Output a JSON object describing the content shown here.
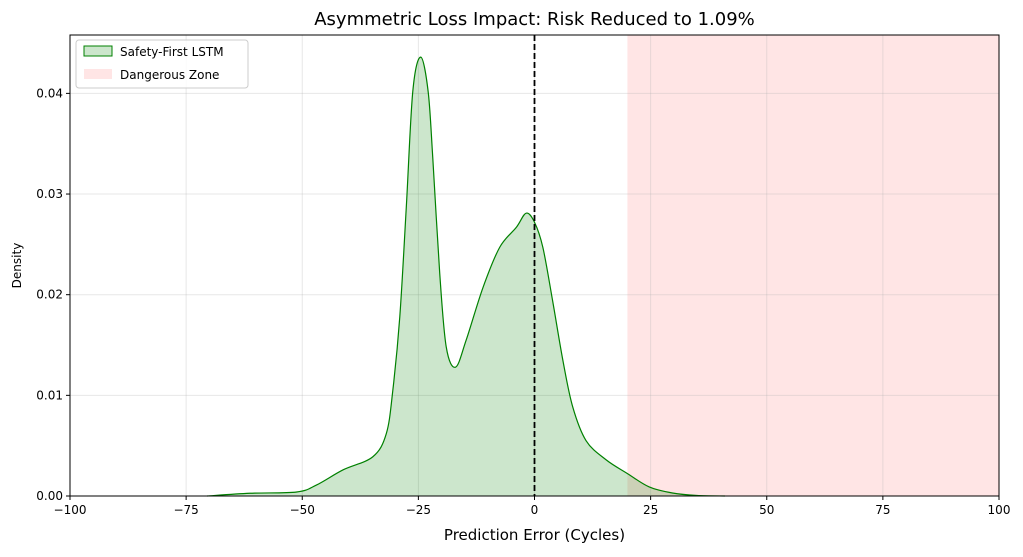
{
  "chart_data": {
    "type": "area",
    "title": "Asymmetric Loss Impact: Risk Reduced to 1.09%",
    "xlabel": "Prediction Error (Cycles)",
    "ylabel": "Density",
    "xlim": [
      -100,
      100
    ],
    "ylim": [
      0,
      0.0458
    ],
    "xticks": [
      -100,
      -75,
      -50,
      -25,
      0,
      25,
      50,
      75,
      100
    ],
    "xtick_labels": [
      "−100",
      "−75",
      "−50",
      "−25",
      "0",
      "25",
      "50",
      "75",
      "100"
    ],
    "yticks": [
      0,
      0.01,
      0.02,
      0.03,
      0.04
    ],
    "ytick_labels": [
      "0.00",
      "0.01",
      "0.02",
      "0.03",
      "0.04"
    ],
    "grid": true,
    "legend_position": "top-left",
    "series": [
      {
        "name": "Safety-First LSTM",
        "color": "#008000",
        "fill_color": "#008000",
        "fill_alpha": 0.2,
        "x": [
          -70.5,
          -61.3,
          -51.2,
          -46.9,
          -41.2,
          -34.8,
          -31.9,
          -30.5,
          -29.0,
          -27.6,
          -26.2,
          -24.5,
          -22.9,
          -21.9,
          -20.4,
          -19.0,
          -17.0,
          -14.7,
          -11.1,
          -7.5,
          -3.9,
          -1.8,
          0,
          1.8,
          3.9,
          6.1,
          8.2,
          11.1,
          15.4,
          20.1,
          24.7,
          29.7,
          35,
          41
        ],
        "y": [
          0,
          0.00027,
          0.0004,
          0.0011,
          0.0026,
          0.0039,
          0.0062,
          0.0105,
          0.0178,
          0.0287,
          0.0402,
          0.0436,
          0.0402,
          0.0336,
          0.0221,
          0.0148,
          0.0128,
          0.0155,
          0.0207,
          0.0247,
          0.0267,
          0.0281,
          0.0272,
          0.0247,
          0.0194,
          0.0135,
          0.0089,
          0.0055,
          0.0036,
          0.0022,
          0.0009,
          0.0003,
          5e-05,
          0
        ]
      }
    ],
    "regions": [
      {
        "name": "Dangerous Zone",
        "x_start": 20,
        "x_end": 100,
        "color": "#ff0000",
        "alpha": 0.1
      }
    ],
    "reference_lines": [
      {
        "x": 0,
        "style": "dashed",
        "color": "#000000"
      }
    ]
  }
}
